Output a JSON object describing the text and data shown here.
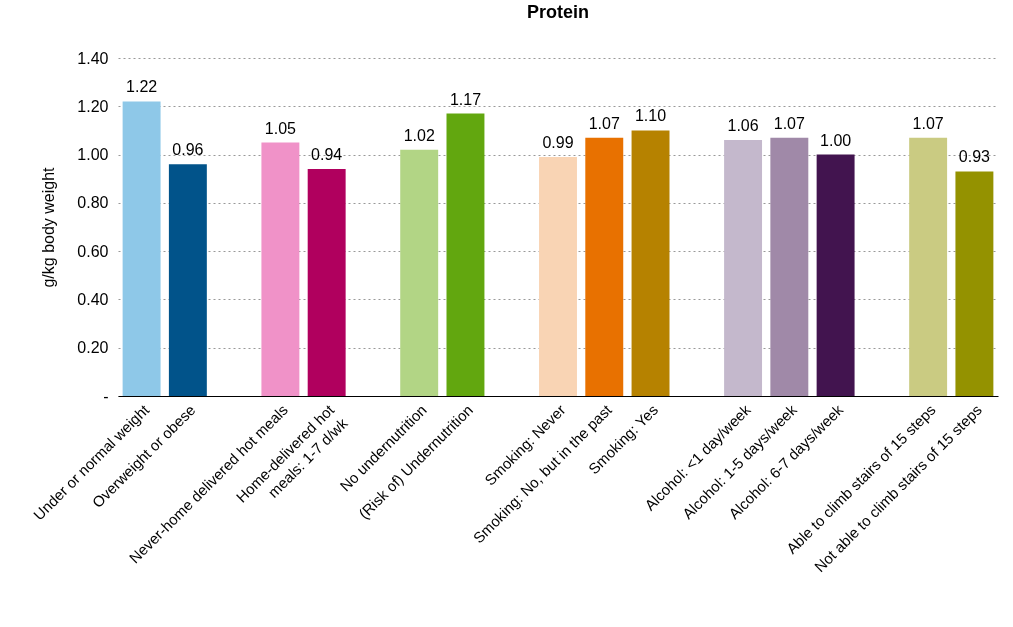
{
  "chart_data": {
    "type": "bar",
    "title": "Protein",
    "ylabel": "g/kg body weight",
    "categories": [
      "Under or normal weight",
      "Overweight or obese",
      null,
      "Never-home delivered hot meals",
      "Home-delivered hot\nmeals: 1-7 d/wk",
      null,
      "No undernutrition",
      "(Risk of) Undernutrition",
      null,
      "Smoking: Never",
      "Smoking: No, but in the  past",
      "Smoking: Yes",
      null,
      "Alcohol: <1 day/week",
      "Alcohol: 1-5 days/week",
      "Alcohol: 6-7 days/week",
      null,
      "Able to climb stairs of 15 steps",
      "Not able to climb stairs of 15 steps"
    ],
    "values": [
      1.22,
      0.96,
      null,
      1.05,
      0.94,
      null,
      1.02,
      1.17,
      null,
      0.99,
      1.07,
      1.1,
      null,
      1.06,
      1.07,
      1.0,
      null,
      1.07,
      0.93
    ],
    "value_labels": [
      "1.22",
      "0.96",
      null,
      "1.05",
      "0.94",
      null,
      "1.02",
      "1.17",
      null,
      "0.99",
      "1.07",
      "1.10",
      null,
      "1.06",
      "1.07",
      "1.00",
      null,
      "1.07",
      "0.93"
    ],
    "colors": [
      "#8ec8e8",
      "#01538a",
      null,
      "#f092c8",
      "#b0005e",
      null,
      "#b2d585",
      "#62a70f",
      null,
      "#f9d4b4",
      "#e87100",
      "#b68200",
      null,
      "#c4b8cc",
      "#a089a8",
      "#42144f",
      null,
      "#cacb82",
      "#949200"
    ],
    "ylim": [
      0,
      1.4
    ],
    "yticks": [
      {
        "value": 0,
        "label": "-"
      },
      {
        "value": 0.2,
        "label": "0.20"
      },
      {
        "value": 0.4,
        "label": "0.40"
      },
      {
        "value": 0.6,
        "label": "0.60"
      },
      {
        "value": 0.8,
        "label": "0.80"
      },
      {
        "value": 1.0,
        "label": "1.00"
      },
      {
        "value": 1.2,
        "label": "1.20"
      },
      {
        "value": 1.4,
        "label": "1.40"
      }
    ],
    "grid": "y"
  }
}
